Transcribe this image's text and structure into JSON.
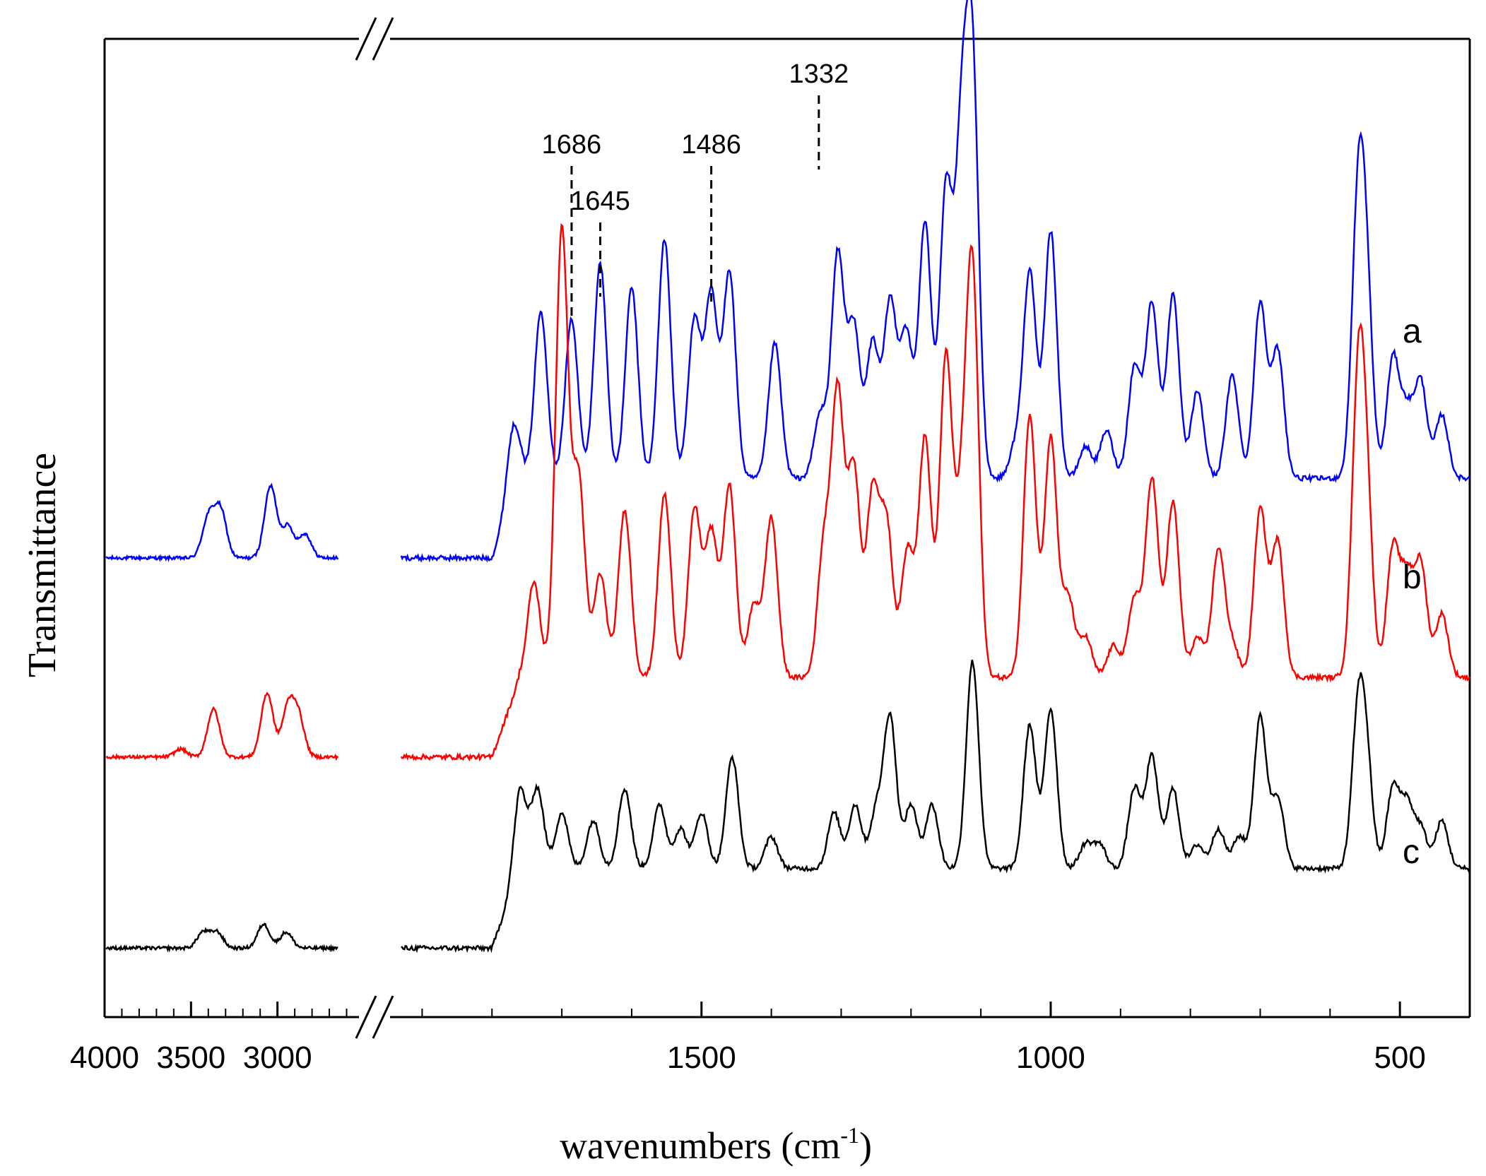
{
  "chart_data": {
    "type": "line",
    "title": "",
    "xlabel": "wavenumbers (cm",
    "xlabel_sup": "-1",
    "xlabel_close": ")",
    "ylabel": "Transmittance",
    "axis_break": "axis break between 2800 and 1800 cm-1",
    "x_ticks_left": [
      4000,
      3500,
      3000
    ],
    "x_ticks_right": [
      1500,
      1000,
      500
    ],
    "x_tick_labels": [
      "4000",
      "3500",
      "3000",
      "1500",
      "1000",
      "500"
    ],
    "xlim_left": [
      4000,
      2500
    ],
    "xlim_right": [
      1950,
      400
    ],
    "ylim": [
      0,
      1.1
    ],
    "grid": false,
    "colors": {
      "a": "#0000ff",
      "b": "#ff0000",
      "c": "#000000"
    },
    "series": [
      {
        "name": "a",
        "color": "#0000ff",
        "label": "a",
        "baseline_high": 0.55,
        "high_peaks": [
          [
            3400,
            0.05
          ],
          [
            3330,
            0.06
          ],
          [
            3040,
            0.09
          ],
          [
            2940,
            0.04
          ],
          [
            2840,
            0.03
          ]
        ],
        "fingerprint": [
          [
            1770,
            0.09
          ],
          [
            1730,
            0.21
          ],
          [
            1686,
            0.2
          ],
          [
            1645,
            0.27
          ],
          [
            1600,
            0.24
          ],
          [
            1553,
            0.3
          ],
          [
            1510,
            0.2
          ],
          [
            1486,
            0.23
          ],
          [
            1460,
            0.26
          ],
          [
            1395,
            0.17
          ],
          [
            1330,
            0.08
          ],
          [
            1305,
            0.28
          ],
          [
            1282,
            0.19
          ],
          [
            1255,
            0.17
          ],
          [
            1230,
            0.22
          ],
          [
            1207,
            0.18
          ],
          [
            1180,
            0.32
          ],
          [
            1150,
            0.36
          ],
          [
            1128,
            0.39
          ],
          [
            1112,
            0.5
          ],
          [
            1050,
            0.04
          ],
          [
            1030,
            0.26
          ],
          [
            1000,
            0.31
          ],
          [
            950,
            0.04
          ],
          [
            920,
            0.06
          ],
          [
            880,
            0.14
          ],
          [
            855,
            0.22
          ],
          [
            825,
            0.23
          ],
          [
            790,
            0.11
          ],
          [
            740,
            0.13
          ],
          [
            700,
            0.22
          ],
          [
            675,
            0.16
          ],
          [
            560,
            0.32
          ],
          [
            548,
            0.21
          ],
          [
            510,
            0.15
          ],
          [
            490,
            0.08
          ],
          [
            470,
            0.12
          ],
          [
            440,
            0.08
          ]
        ]
      },
      {
        "name": "b",
        "color": "#ff0000",
        "label": "b",
        "baseline_high": 0.3,
        "high_peaks": [
          [
            3560,
            0.01
          ],
          [
            3370,
            0.06
          ],
          [
            3060,
            0.08
          ],
          [
            2940,
            0.06
          ],
          [
            2880,
            0.05
          ]
        ],
        "fingerprint": [
          [
            1740,
            0.12
          ],
          [
            1700,
            0.56
          ],
          [
            1676,
            0.25
          ],
          [
            1645,
            0.13
          ],
          [
            1610,
            0.21
          ],
          [
            1553,
            0.23
          ],
          [
            1510,
            0.21
          ],
          [
            1486,
            0.18
          ],
          [
            1460,
            0.24
          ],
          [
            1425,
            0.09
          ],
          [
            1400,
            0.2
          ],
          [
            1325,
            0.16
          ],
          [
            1305,
            0.35
          ],
          [
            1282,
            0.26
          ],
          [
            1255,
            0.23
          ],
          [
            1235,
            0.19
          ],
          [
            1205,
            0.16
          ],
          [
            1180,
            0.3
          ],
          [
            1150,
            0.4
          ],
          [
            1128,
            0.18
          ],
          [
            1112,
            0.5
          ],
          [
            1030,
            0.33
          ],
          [
            1000,
            0.3
          ],
          [
            975,
            0.1
          ],
          [
            950,
            0.05
          ],
          [
            910,
            0.04
          ],
          [
            880,
            0.1
          ],
          [
            855,
            0.25
          ],
          [
            825,
            0.22
          ],
          [
            790,
            0.05
          ],
          [
            760,
            0.16
          ],
          [
            740,
            0.04
          ],
          [
            700,
            0.21
          ],
          [
            675,
            0.17
          ],
          [
            560,
            0.34
          ],
          [
            548,
            0.2
          ],
          [
            510,
            0.16
          ],
          [
            490,
            0.12
          ],
          [
            470,
            0.14
          ],
          [
            440,
            0.08
          ]
        ]
      },
      {
        "name": "c",
        "color": "#000000",
        "label": "c",
        "baseline_high": 0.06,
        "high_peaks": [
          [
            3430,
            0.02
          ],
          [
            3350,
            0.02
          ],
          [
            3080,
            0.03
          ],
          [
            2950,
            0.02
          ]
        ],
        "fingerprint": [
          [
            1760,
            0.1
          ],
          [
            1735,
            0.1
          ],
          [
            1700,
            0.07
          ],
          [
            1655,
            0.06
          ],
          [
            1610,
            0.1
          ],
          [
            1560,
            0.08
          ],
          [
            1530,
            0.05
          ],
          [
            1500,
            0.07
          ],
          [
            1456,
            0.14
          ],
          [
            1400,
            0.04
          ],
          [
            1310,
            0.07
          ],
          [
            1280,
            0.08
          ],
          [
            1250,
            0.07
          ],
          [
            1230,
            0.19
          ],
          [
            1200,
            0.08
          ],
          [
            1170,
            0.08
          ],
          [
            1112,
            0.26
          ],
          [
            1030,
            0.18
          ],
          [
            1000,
            0.2
          ],
          [
            950,
            0.03
          ],
          [
            930,
            0.03
          ],
          [
            880,
            0.1
          ],
          [
            855,
            0.14
          ],
          [
            825,
            0.1
          ],
          [
            790,
            0.03
          ],
          [
            760,
            0.05
          ],
          [
            730,
            0.04
          ],
          [
            700,
            0.19
          ],
          [
            675,
            0.09
          ],
          [
            560,
            0.18
          ],
          [
            548,
            0.12
          ],
          [
            510,
            0.1
          ],
          [
            490,
            0.08
          ],
          [
            470,
            0.05
          ],
          [
            440,
            0.06
          ]
        ]
      }
    ],
    "annotations": [
      {
        "text": "1686",
        "x": 1686
      },
      {
        "text": "1645",
        "x": 1645
      },
      {
        "text": "1486",
        "x": 1486
      },
      {
        "text": "1332",
        "x": 1332
      }
    ]
  }
}
